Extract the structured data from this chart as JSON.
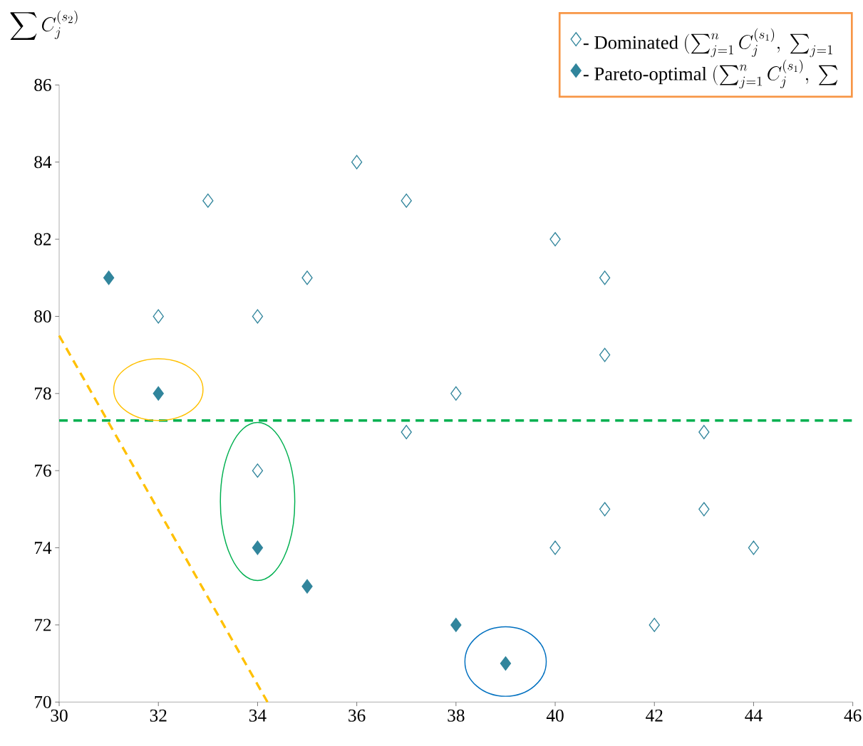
{
  "chart_data": {
    "type": "scatter",
    "ylabel": "\\sum C_j^{(s_2)}",
    "xlim": [
      30,
      46
    ],
    "xticks": [
      30,
      32,
      34,
      36,
      38,
      40,
      42,
      44,
      46
    ],
    "ylim": [
      70,
      86
    ],
    "yticks": [
      70,
      72,
      74,
      76,
      78,
      80,
      82,
      84,
      86
    ],
    "grid": false,
    "legend": "top right",
    "marker": "diamond",
    "series": [
      {
        "name": "\\text{- Dominated }(\\textstyle\\sum_{j=1}^{n} C_j^{(s_1)},\\ \\sum_{j=1}",
        "color": "#31859c",
        "x": [
          32,
          33,
          34,
          35,
          36,
          37,
          40,
          41,
          41,
          38,
          37,
          34,
          43,
          41,
          43,
          40,
          44,
          42
        ],
        "values": [
          80,
          83,
          80,
          81,
          84,
          83,
          82,
          81,
          79,
          78,
          77,
          76,
          77,
          75,
          75,
          74,
          74,
          72
        ]
      },
      {
        "name": "\\text{- Pareto-optimal }(\\textstyle\\sum_{j=1}^{n} C_j^{(s_1)},\\ \\sum",
        "color": "#31859c",
        "x": [
          31,
          32,
          34,
          35,
          38,
          39
        ],
        "values": [
          81,
          78,
          74,
          73,
          72,
          71
        ]
      },
      {
        "type": "line",
        "marker": "none",
        "color": "#ffc000",
        "line_style": "dashed",
        "x": [
          30,
          34.2
        ],
        "values": [
          79.5,
          70
        ]
      }
    ],
    "ref_lines": [
      {
        "axis": "y",
        "value": 77.3,
        "color": "#00b050",
        "line_style": "dashed"
      }
    ]
  }
}
